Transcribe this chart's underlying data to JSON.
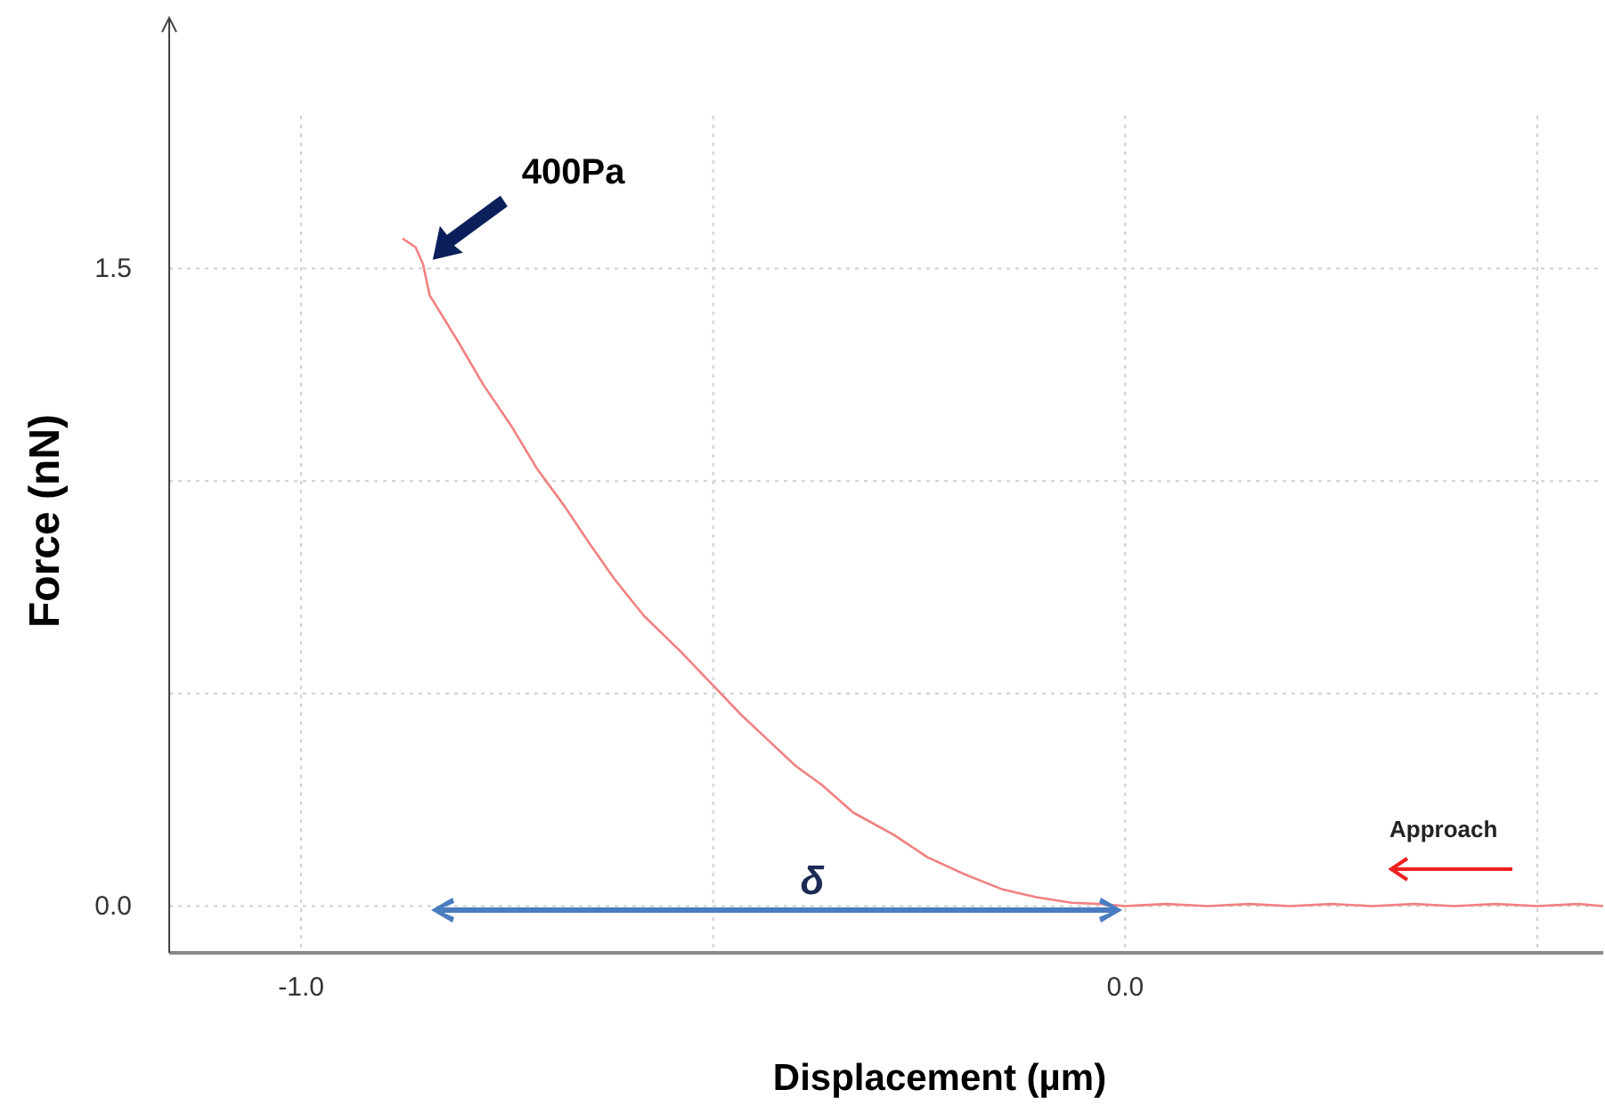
{
  "chart_data": {
    "type": "line",
    "xlabel": "Displacement (µm)",
    "ylabel": "Force (nN)",
    "xlim": [
      -1.16,
      0.58
    ],
    "ylim": [
      -0.11,
      2.09
    ],
    "xticks": [
      {
        "value": -1,
        "label": "-1.0"
      },
      {
        "value": -0.5,
        "label": null
      },
      {
        "value": 0,
        "label": "0.0"
      },
      {
        "value": 0.5,
        "label": null
      }
    ],
    "yticks": [
      {
        "value": 0,
        "label": "0.0"
      },
      {
        "value": 0.5,
        "label": null
      },
      {
        "value": 1,
        "label": null
      },
      {
        "value": 1.5,
        "label": "1.5"
      }
    ],
    "grid": true,
    "marker": "none",
    "line_style": "solid",
    "series": [
      {
        "color": "#f28080",
        "x": [
          -0.877,
          -0.861,
          -0.852,
          -0.844,
          -0.81,
          -0.779,
          -0.745,
          -0.714,
          -0.68,
          -0.649,
          -0.62,
          -0.584,
          -0.54,
          -0.498,
          -0.466,
          -0.433,
          -0.4,
          -0.368,
          -0.33,
          -0.281,
          -0.24,
          -0.195,
          -0.15,
          -0.108,
          -0.065,
          -0.03,
          0,
          0.05,
          0.1,
          0.15,
          0.2,
          0.25,
          0.3,
          0.35,
          0.4,
          0.45,
          0.5,
          0.55,
          0.58
        ],
        "values": [
          1.571,
          1.55,
          1.51,
          1.437,
          1.33,
          1.227,
          1.13,
          1.03,
          0.94,
          0.85,
          0.77,
          0.683,
          0.6,
          0.515,
          0.45,
          0.39,
          0.33,
          0.285,
          0.22,
          0.168,
          0.115,
          0.075,
          0.04,
          0.021,
          0.008,
          0.005,
          0,
          0.005,
          0,
          0.005,
          0,
          0.005,
          0,
          0.005,
          0,
          0.005,
          0,
          0.005,
          0
        ]
      }
    ],
    "annotations": [
      "400Pa",
      "δ",
      "Approach"
    ]
  }
}
